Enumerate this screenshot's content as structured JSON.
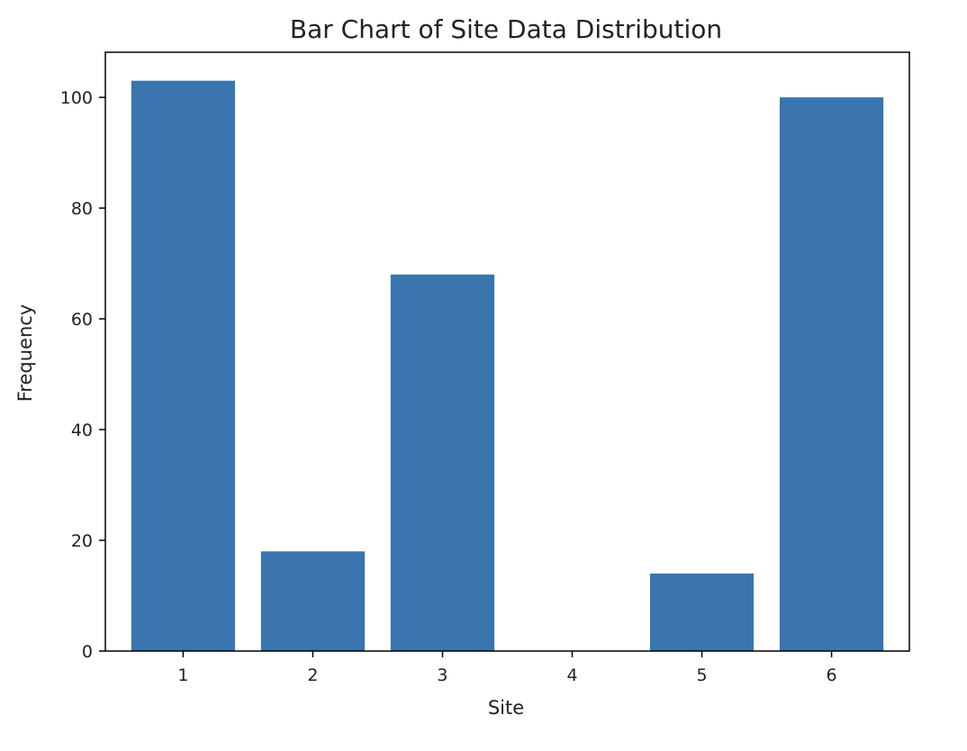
{
  "chart_data": {
    "type": "bar",
    "title": "Bar Chart of Site Data Distribution",
    "xlabel": "Site",
    "ylabel": "Frequency",
    "categories": [
      "1",
      "2",
      "3",
      "4",
      "5",
      "6"
    ],
    "values": [
      103,
      18,
      68,
      0,
      14,
      100
    ],
    "ylim": [
      0,
      108.15
    ],
    "yticks": [
      0,
      20,
      40,
      60,
      80,
      100
    ],
    "bar_color": "#3a75af",
    "grid": false,
    "legend": "none"
  }
}
